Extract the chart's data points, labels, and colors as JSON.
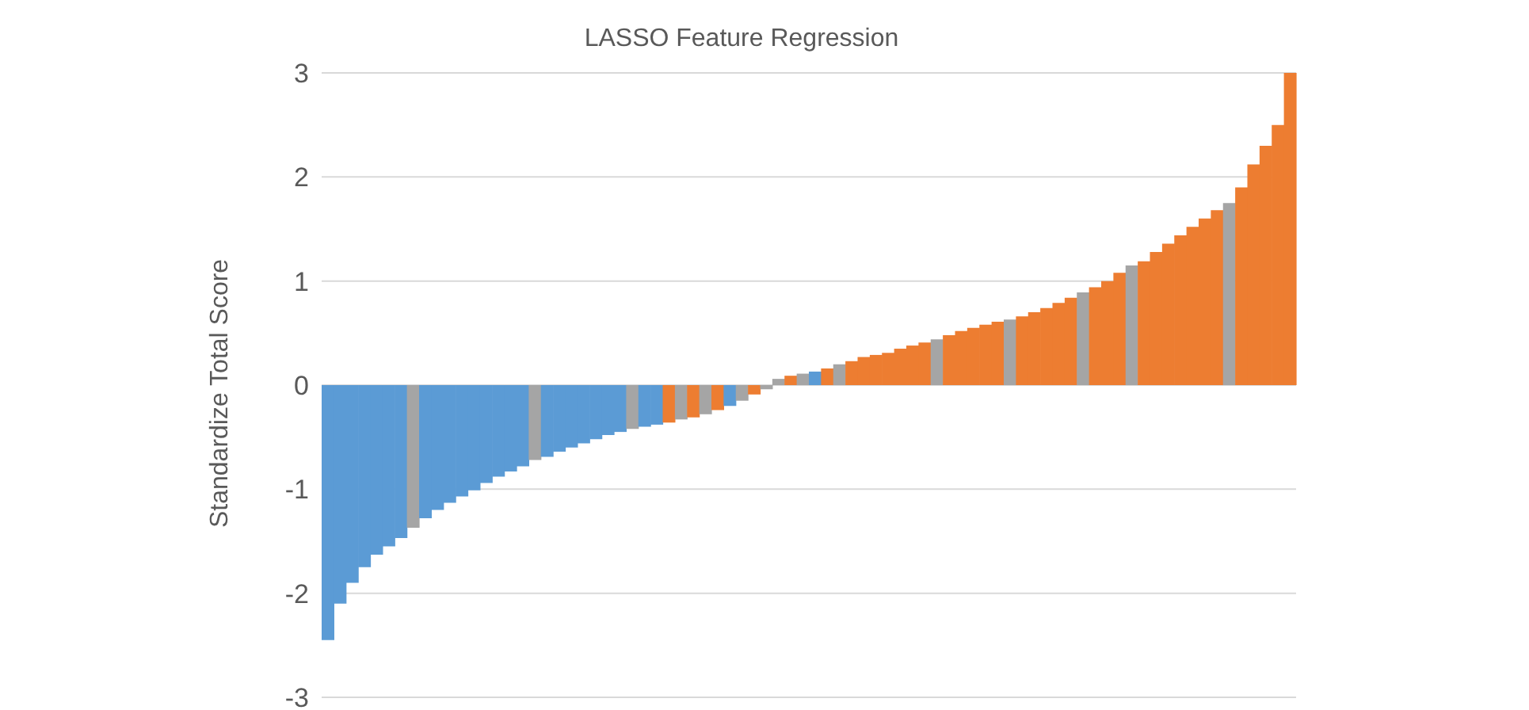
{
  "chart_data": {
    "type": "bar",
    "title": "LASSO Feature Regression",
    "ylabel": "Standardize Total Score",
    "categories": [
      null,
      null,
      null,
      null,
      null,
      null,
      null,
      null,
      null,
      null,
      null,
      null,
      null,
      null,
      null,
      null,
      null,
      null,
      null,
      null,
      null,
      null,
      null,
      null,
      null,
      null,
      null,
      null,
      null,
      null,
      null,
      null,
      null,
      null,
      null,
      null,
      null,
      null,
      null,
      null,
      null,
      null,
      null,
      null,
      null,
      null,
      null,
      null,
      null,
      null,
      null,
      null,
      null,
      null,
      null,
      null,
      null,
      null,
      null,
      null,
      null,
      null,
      null,
      null,
      null,
      null,
      null,
      null,
      null,
      null,
      null,
      null,
      null,
      null,
      null,
      null,
      null,
      null,
      null,
      null
    ],
    "values": [
      -2.45,
      -2.1,
      -1.9,
      -1.75,
      -1.63,
      -1.55,
      -1.47,
      -1.37,
      -1.28,
      -1.2,
      -1.13,
      -1.07,
      -1.01,
      -0.94,
      -0.88,
      -0.83,
      -0.78,
      -0.72,
      -0.69,
      -0.64,
      -0.6,
      -0.56,
      -0.52,
      -0.48,
      -0.45,
      -0.42,
      -0.4,
      -0.38,
      -0.36,
      -0.33,
      -0.31,
      -0.28,
      -0.24,
      -0.2,
      -0.15,
      -0.09,
      -0.04,
      0.06,
      0.09,
      0.11,
      0.13,
      0.16,
      0.2,
      0.23,
      0.27,
      0.29,
      0.31,
      0.35,
      0.38,
      0.41,
      0.44,
      0.48,
      0.52,
      0.55,
      0.58,
      0.61,
      0.63,
      0.66,
      0.7,
      0.74,
      0.79,
      0.84,
      0.89,
      0.94,
      1.0,
      1.08,
      1.15,
      1.19,
      1.28,
      1.36,
      1.44,
      1.52,
      1.6,
      1.68,
      1.75,
      1.9,
      2.12,
      2.3,
      2.5,
      3.0
    ],
    "colors": [
      "#5b9bd5",
      "#5b9bd5",
      "#5b9bd5",
      "#5b9bd5",
      "#5b9bd5",
      "#5b9bd5",
      "#5b9bd5",
      "#a5a5a5",
      "#5b9bd5",
      "#5b9bd5",
      "#5b9bd5",
      "#5b9bd5",
      "#5b9bd5",
      "#5b9bd5",
      "#5b9bd5",
      "#5b9bd5",
      "#5b9bd5",
      "#a5a5a5",
      "#5b9bd5",
      "#5b9bd5",
      "#5b9bd5",
      "#5b9bd5",
      "#5b9bd5",
      "#5b9bd5",
      "#5b9bd5",
      "#a5a5a5",
      "#5b9bd5",
      "#5b9bd5",
      "#ed7d31",
      "#a5a5a5",
      "#ed7d31",
      "#a5a5a5",
      "#ed7d31",
      "#5b9bd5",
      "#a5a5a5",
      "#ed7d31",
      "#a5a5a5",
      "#a5a5a5",
      "#ed7d31",
      "#a5a5a5",
      "#5b9bd5",
      "#ed7d31",
      "#a5a5a5",
      "#ed7d31",
      "#ed7d31",
      "#ed7d31",
      "#ed7d31",
      "#ed7d31",
      "#ed7d31",
      "#ed7d31",
      "#a5a5a5",
      "#ed7d31",
      "#ed7d31",
      "#ed7d31",
      "#ed7d31",
      "#ed7d31",
      "#a5a5a5",
      "#ed7d31",
      "#ed7d31",
      "#ed7d31",
      "#ed7d31",
      "#ed7d31",
      "#a5a5a5",
      "#ed7d31",
      "#ed7d31",
      "#ed7d31",
      "#a5a5a5",
      "#ed7d31",
      "#ed7d31",
      "#ed7d31",
      "#ed7d31",
      "#ed7d31",
      "#ed7d31",
      "#ed7d31",
      "#a5a5a5",
      "#ed7d31",
      "#ed7d31",
      "#ed7d31",
      "#ed7d31",
      "#ed7d31"
    ],
    "ylim": [
      -3,
      3
    ],
    "yticks": [
      -3,
      -2,
      -1,
      0,
      1,
      2,
      3
    ],
    "grid": "y",
    "tick_labels": "y"
  }
}
